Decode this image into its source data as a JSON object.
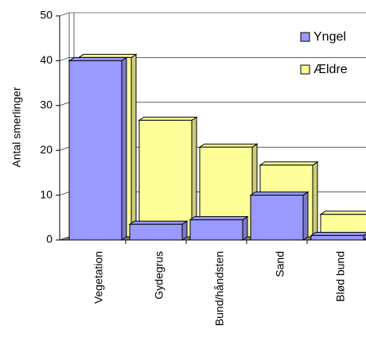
{
  "chart_data": {
    "type": "bar3d",
    "y_label": "Antal smerlinger",
    "categories": [
      "Vegetation",
      "Gydegrus",
      "Bund/håndsten",
      "Sand",
      "Blød bund"
    ],
    "series": [
      {
        "name": "Yngel",
        "color": "#9999ff",
        "values": [
          40,
          3.5,
          4.5,
          10,
          1
        ]
      },
      {
        "name": "Ældre",
        "color": "#ffff99",
        "values": [
          40,
          26,
          20,
          16,
          5
        ]
      }
    ],
    "ylim": [
      0,
      50
    ],
    "yticks": [
      0,
      10,
      20,
      30,
      40,
      50
    ],
    "grid": true,
    "legend": "upper right"
  }
}
